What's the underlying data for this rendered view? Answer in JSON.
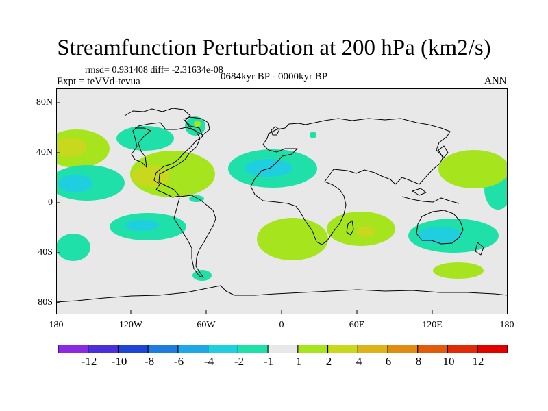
{
  "title": "Streamfunction Perturbation at 200 hPa (km2/s)",
  "stats": "rmsd= 0.931408 diff= -2.31634e-08",
  "experiment": "Expt = teVVd-tevua",
  "period": "0684kyr BP - 0000kyr BP",
  "season": "ANN",
  "map": {
    "lat_labels": [
      "80N",
      "40N",
      "0",
      "40S",
      "80S"
    ],
    "lon_labels": [
      "180",
      "120W",
      "60W",
      "0",
      "60E",
      "120E",
      "180"
    ]
  },
  "colorbar": {
    "labels": [
      "-12",
      "-10",
      "-8",
      "-6",
      "-4",
      "-2",
      "-1",
      "1",
      "2",
      "4",
      "6",
      "8",
      "10",
      "12"
    ],
    "colors": [
      "#8a2be2",
      "#4b2fd9",
      "#1d46d6",
      "#1f7be0",
      "#20a8e6",
      "#1fcfe0",
      "#1ee0a8",
      "#e8e8e8",
      "#a6e41e",
      "#c8d81c",
      "#dcb41a",
      "#e08c12",
      "#e05c0c",
      "#e02a08",
      "#e00000"
    ]
  },
  "regions": [
    {
      "id": "pos-np-west",
      "level": "2",
      "color": "#a6e41e"
    },
    {
      "id": "pos-np-west-core",
      "level": "4",
      "color": "#c8d81c"
    },
    {
      "id": "neg-np-sub",
      "level": "-1",
      "color": "#1ee0a8"
    },
    {
      "id": "neg-np-sub-core",
      "level": "-2",
      "color": "#1fcfe0"
    },
    {
      "id": "neg-npacific",
      "level": "-1",
      "color": "#1ee0a8"
    },
    {
      "id": "neg-canada",
      "level": "-1",
      "color": "#1ee0a8"
    },
    {
      "id": "pos-mexico",
      "level": "2",
      "color": "#a6e41e"
    },
    {
      "id": "pos-mexico-core",
      "level": "4",
      "color": "#c8d81c"
    },
    {
      "id": "neg-greenland",
      "level": "-1",
      "color": "#1ee0a8"
    },
    {
      "id": "pos-greenland",
      "level": "2",
      "color": "#a6e41e"
    },
    {
      "id": "neg-saharan",
      "level": "-1",
      "color": "#1ee0a8"
    },
    {
      "id": "neg-saharan-core",
      "level": "-2",
      "color": "#1fcfe0"
    },
    {
      "id": "neg-scand",
      "level": "-1",
      "color": "#1ee0a8"
    },
    {
      "id": "neg-wp",
      "level": "-1",
      "color": "#1ee0a8"
    },
    {
      "id": "pos-wp",
      "level": "2",
      "color": "#a6e41e"
    },
    {
      "id": "neg-eq-small",
      "level": "-1",
      "color": "#1ee0a8"
    },
    {
      "id": "neg-sp",
      "level": "-1",
      "color": "#1ee0a8"
    },
    {
      "id": "neg-sp-core",
      "level": "-2",
      "color": "#1fcfe0"
    },
    {
      "id": "neg-sp-east",
      "level": "-1",
      "color": "#1ee0a8"
    },
    {
      "id": "neg-patagonia",
      "level": "-1",
      "color": "#1ee0a8"
    },
    {
      "id": "pos-satl",
      "level": "2",
      "color": "#a6e41e"
    },
    {
      "id": "pos-sind",
      "level": "2",
      "color": "#a6e41e"
    },
    {
      "id": "pos-sind-core",
      "level": "4",
      "color": "#c8d81c"
    },
    {
      "id": "neg-aus",
      "level": "-1",
      "color": "#1ee0a8"
    },
    {
      "id": "neg-aus-core",
      "level": "-2",
      "color": "#1fcfe0"
    },
    {
      "id": "pos-south-aus",
      "level": "2",
      "color": "#a6e41e"
    }
  ]
}
